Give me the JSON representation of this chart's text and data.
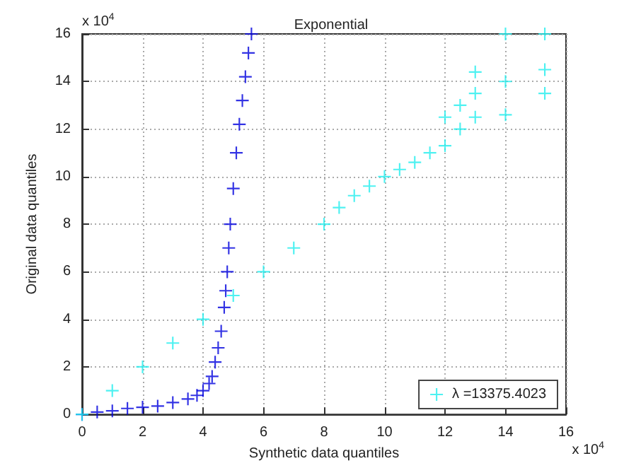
{
  "chart_data": {
    "type": "scatter",
    "title": "Exponential",
    "xlabel": "Synthetic data quantiles",
    "ylabel": "Original data quantiles",
    "annotations": [
      "x 10$^{4}$",
      "x 10$^{4}$"
    ],
    "series": [
      {
        "color": "#0000dd",
        "x": [
          0,
          0.5,
          1,
          1.5,
          2,
          2.5,
          3,
          3.5,
          3.8,
          4,
          4.2,
          4.3,
          4.4,
          4.5,
          4.6,
          4.7,
          4.75,
          4.8,
          4.85,
          4.9,
          5,
          5.1,
          5.2,
          5.3,
          5.4,
          5.5,
          5.6
        ],
        "values": [
          0,
          0.1,
          0.15,
          0.25,
          0.3,
          0.35,
          0.5,
          0.65,
          0.8,
          1,
          1.3,
          1.6,
          2.2,
          2.8,
          3.5,
          4.5,
          5.2,
          6,
          7,
          8,
          9.5,
          11,
          12.2,
          13.2,
          14.2,
          15.2,
          16
        ]
      },
      {
        "name": "λ =13375.4023",
        "color": "#22eeee",
        "x": [
          0,
          1,
          2,
          3,
          4,
          5,
          6,
          7,
          8,
          8.5,
          9,
          9.5,
          10,
          10.5,
          11,
          11.5,
          12,
          12,
          12.5,
          12.5,
          13,
          13,
          13,
          14,
          14,
          14,
          15.3,
          15.3,
          15.3
        ],
        "values": [
          0,
          1,
          2,
          3,
          4,
          5,
          6,
          7,
          8,
          8.7,
          9.2,
          9.6,
          10,
          10.3,
          10.6,
          11,
          11.3,
          12.5,
          12,
          13,
          12.5,
          13.5,
          14.4,
          12.6,
          14,
          16,
          13.5,
          14.5,
          16
        ]
      }
    ],
    "xlim": [
      0,
      16
    ],
    "xticks": [
      0,
      2,
      4,
      6,
      8,
      10,
      12,
      14,
      16
    ],
    "ylim": [
      0,
      16
    ],
    "yticks": [
      0,
      2,
      4,
      6,
      8,
      10,
      12,
      14,
      16
    ],
    "grid": true,
    "legend": "bottom right",
    "marker": "cross"
  }
}
